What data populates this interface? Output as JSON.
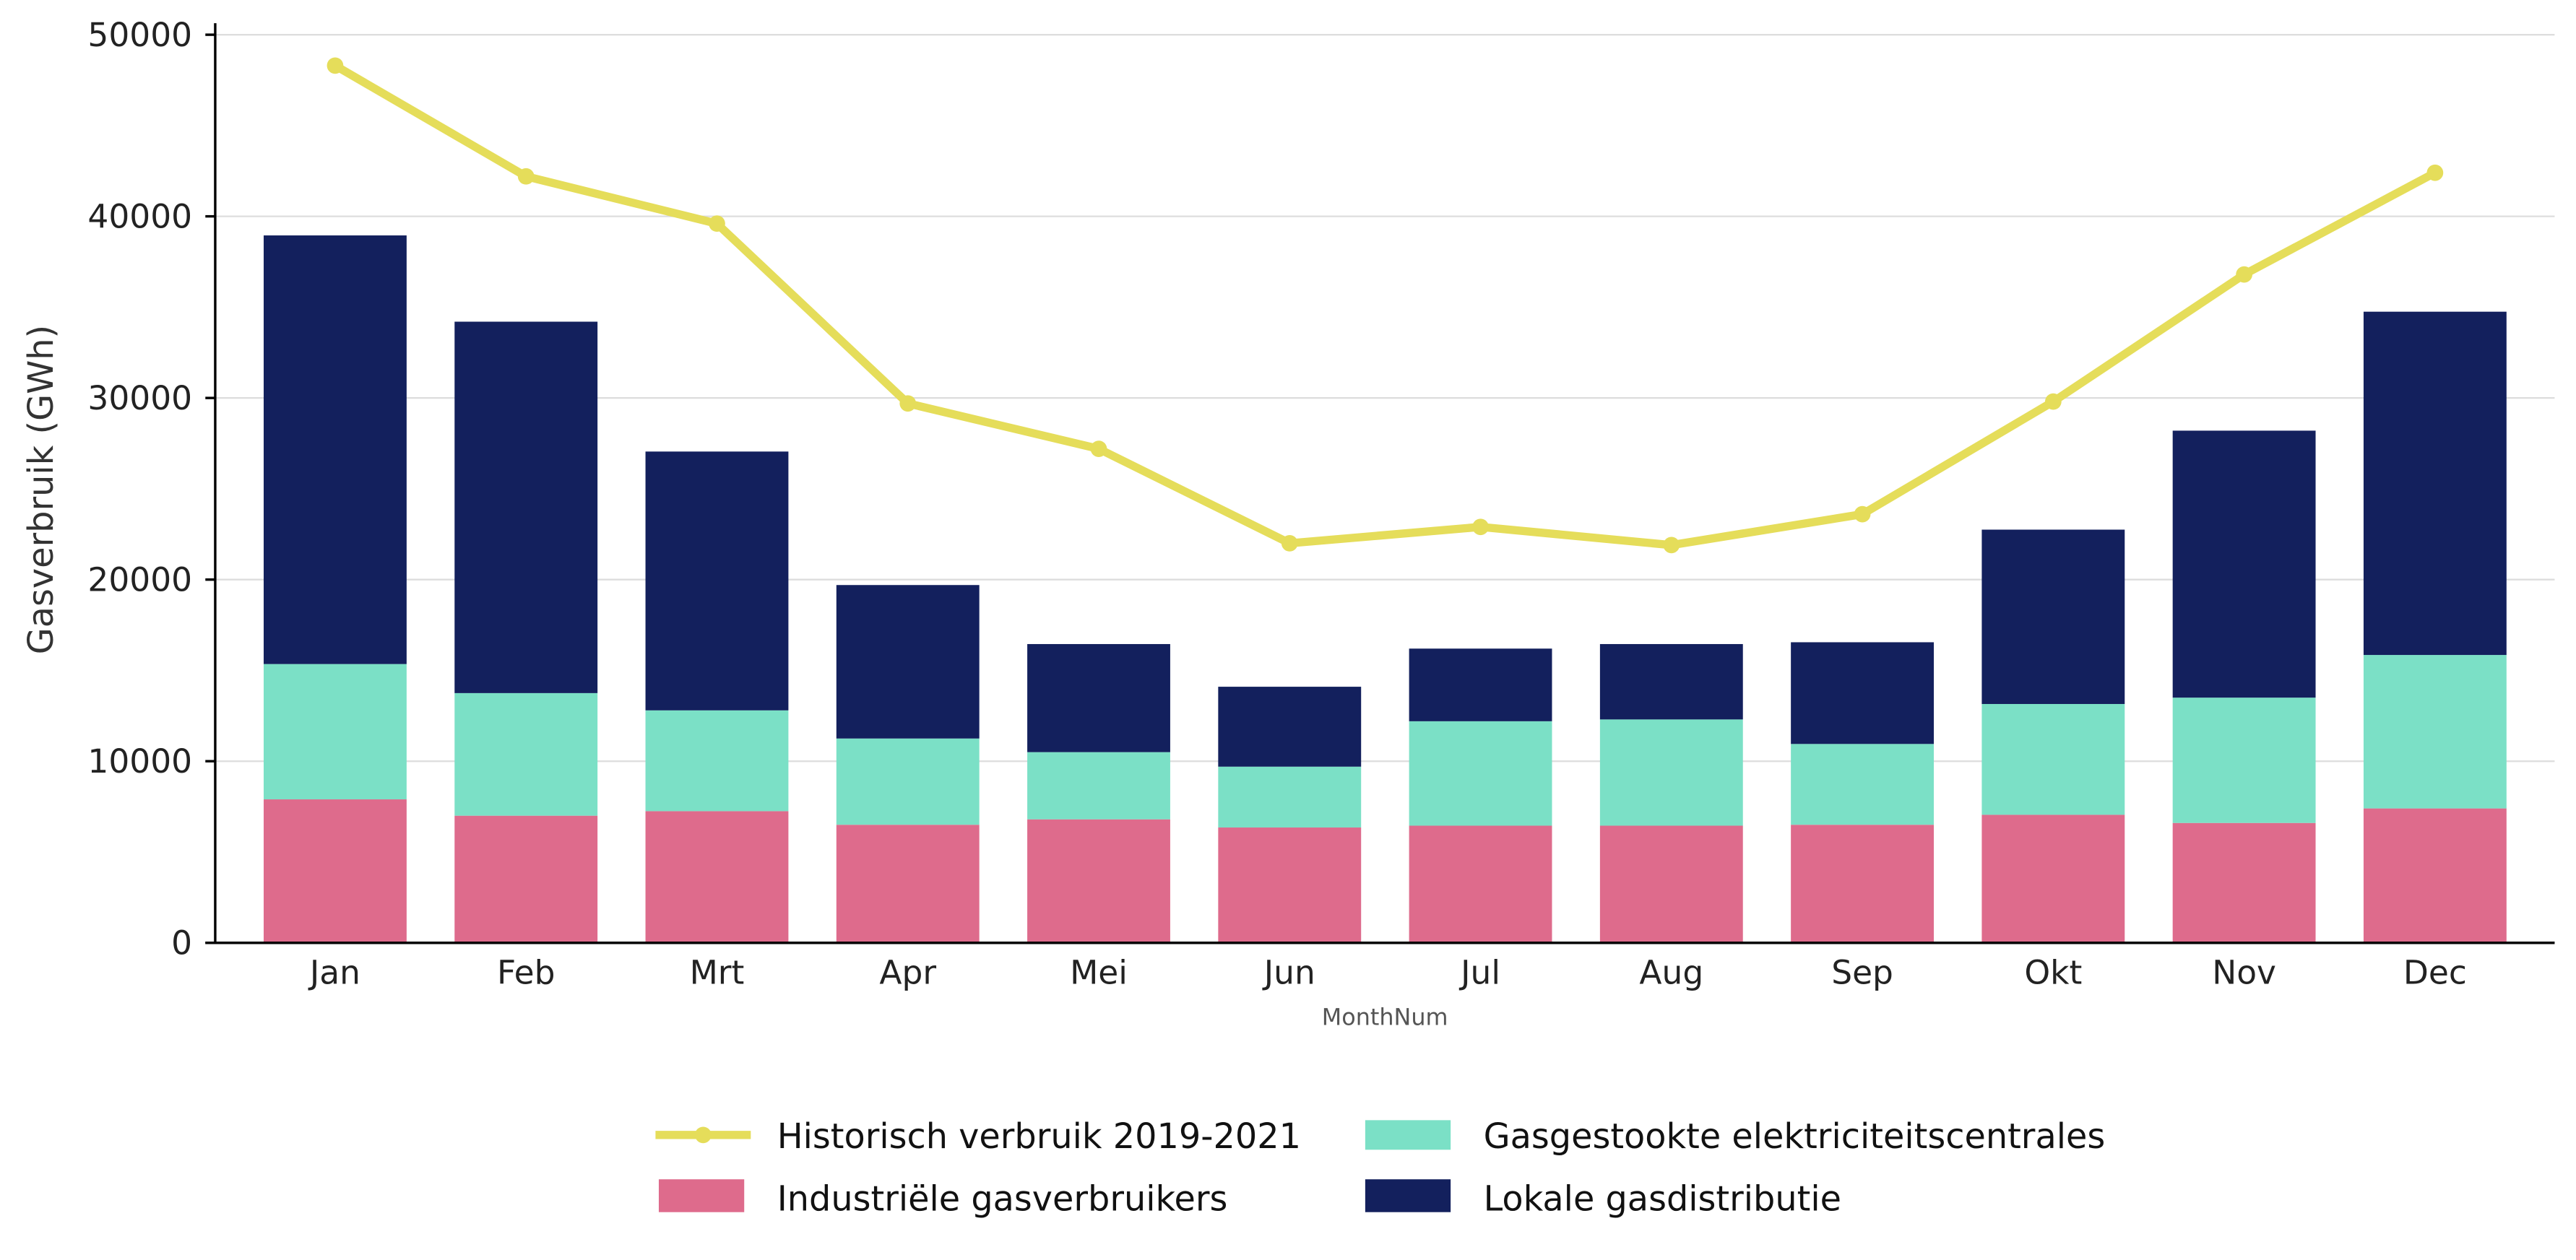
{
  "chart_data": {
    "type": "bar",
    "stacked": true,
    "xlabel": "MonthNum",
    "ylabel": "Gasverbruik (GWh)",
    "ylim": [
      0,
      50000
    ],
    "yticks": [
      0,
      10000,
      20000,
      30000,
      40000,
      50000
    ],
    "grid": "horizontal",
    "legend_position": "bottom",
    "categories": [
      "Jan",
      "Feb",
      "Mrt",
      "Apr",
      "Mei",
      "Jun",
      "Jul",
      "Aug",
      "Sep",
      "Okt",
      "Nov",
      "Dec"
    ],
    "series": [
      {
        "name": "Industriële gasverbruikers",
        "kind": "bar",
        "color": "#de6b8c",
        "values": [
          7900,
          7000,
          7250,
          6500,
          6800,
          6350,
          6450,
          6450,
          6500,
          7050,
          6600,
          7400
        ]
      },
      {
        "name": "Gasgestookte elektriciteitscentrales",
        "kind": "bar",
        "color": "#7be0c6",
        "values": [
          7450,
          6750,
          5550,
          4750,
          3700,
          3350,
          5750,
          5850,
          4450,
          6100,
          6900,
          8450
        ]
      },
      {
        "name": "Lokale gasdistributie",
        "kind": "bar",
        "color": "#13205d",
        "values": [
          23600,
          20450,
          14250,
          8450,
          5950,
          4400,
          4000,
          4150,
          5600,
          9600,
          14700,
          18900
        ]
      },
      {
        "name": "Historisch verbruik 2019-2021",
        "kind": "line",
        "color": "#e5dd5a",
        "values": [
          48300,
          42200,
          39600,
          29700,
          27200,
          22000,
          22900,
          21900,
          23600,
          29800,
          36800,
          42400
        ]
      }
    ]
  }
}
